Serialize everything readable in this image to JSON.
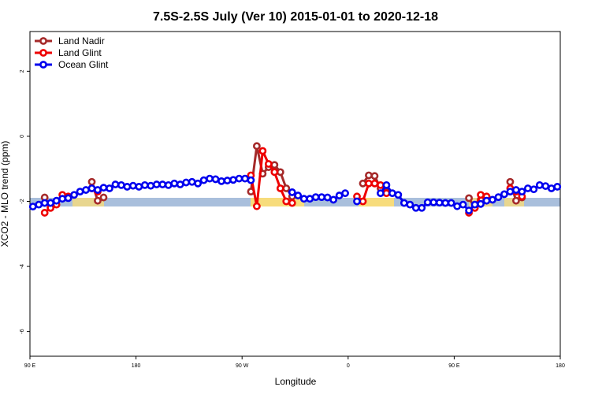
{
  "chart_data": {
    "type": "line",
    "title": "7.5S-2.5S July (Ver 10)   2015-01-01 to 2020-12-18",
    "x_label": "Longitude",
    "y_label": "XCO2 - MLO trend (ppm)",
    "x": [
      92.5,
      97.5,
      102.5,
      107.5,
      112.5,
      117.5,
      122.5,
      127.5,
      132.5,
      137.5,
      142.5,
      147.5,
      152.5,
      157.5,
      162.5,
      167.5,
      172.5,
      177.5,
      182.5,
      187.5,
      192.5,
      197.5,
      202.5,
      207.5,
      212.5,
      217.5,
      222.5,
      227.5,
      232.5,
      237.5,
      242.5,
      247.5,
      252.5,
      257.5,
      262.5,
      267.5,
      272.5,
      277.5,
      282.5,
      287.5,
      292.5,
      297.5,
      302.5,
      307.5,
      312.5,
      317.5,
      322.5,
      327.5,
      332.5,
      337.5,
      342.5,
      347.5,
      352.5,
      357.5,
      362.5,
      367.5,
      372.5,
      377.5,
      382.5,
      387.5,
      392.5,
      397.5,
      402.5,
      407.5,
      412.5,
      417.5,
      422.5,
      427.5,
      432.5,
      437.5,
      442.5,
      447.5,
      452.5,
      457.5,
      462.5,
      467.5,
      472.5,
      477.5,
      482.5,
      487.5,
      492.5,
      497.5,
      502.5,
      507.5,
      512.5,
      517.5,
      522.5,
      527.5,
      532.5,
      537.5
    ],
    "series": [
      {
        "name": "Land Nadir",
        "color": "#a52a2a",
        "values": [
          null,
          null,
          -1.88,
          -2.2,
          null,
          null,
          null,
          null,
          null,
          null,
          -1.4,
          -1.98,
          -1.88,
          null,
          null,
          null,
          null,
          null,
          null,
          null,
          null,
          null,
          null,
          null,
          null,
          null,
          null,
          null,
          null,
          null,
          null,
          null,
          null,
          null,
          null,
          null,
          null,
          -1.7,
          -0.3,
          -1.15,
          -0.95,
          -0.88,
          -1.1,
          -1.6,
          -1.85,
          null,
          null,
          null,
          null,
          null,
          null,
          null,
          null,
          null,
          null,
          null,
          -1.45,
          -1.2,
          -1.22,
          -1.6,
          -1.7,
          null,
          null,
          null,
          null,
          null,
          null,
          null,
          null,
          null,
          null,
          null,
          null,
          null,
          -1.9,
          -2.2,
          -1.95,
          null,
          null,
          null,
          null,
          -1.4,
          -1.98,
          -1.88,
          null,
          null,
          null,
          null,
          null,
          null
        ]
      },
      {
        "name": "Land Glint",
        "color": "#ee0000",
        "values": [
          null,
          null,
          -2.35,
          -2.2,
          -2.1,
          -1.8,
          -1.85,
          null,
          null,
          null,
          -1.6,
          -1.7,
          null,
          null,
          null,
          null,
          null,
          null,
          null,
          null,
          null,
          null,
          null,
          null,
          null,
          null,
          null,
          null,
          null,
          null,
          null,
          null,
          null,
          null,
          null,
          null,
          null,
          -1.2,
          -2.15,
          -0.45,
          -0.85,
          -1.1,
          -1.6,
          -2.0,
          -2.05,
          null,
          null,
          null,
          null,
          null,
          null,
          null,
          null,
          null,
          null,
          -1.85,
          -2.0,
          -1.45,
          -1.45,
          -1.5,
          -1.75,
          null,
          null,
          null,
          null,
          null,
          null,
          null,
          null,
          null,
          null,
          null,
          null,
          null,
          -2.35,
          -2.2,
          -1.8,
          -1.85,
          null,
          null,
          null,
          -1.6,
          -1.7,
          -1.85,
          null,
          null,
          null,
          null,
          null,
          null
        ]
      },
      {
        "name": "Ocean Glint",
        "color": "#0000ee",
        "values": [
          -2.16,
          -2.1,
          -2.05,
          -2.05,
          -1.98,
          -1.92,
          -1.9,
          -1.8,
          -1.7,
          -1.65,
          -1.6,
          -1.65,
          -1.58,
          -1.6,
          -1.48,
          -1.5,
          -1.55,
          -1.52,
          -1.55,
          -1.5,
          -1.52,
          -1.48,
          -1.48,
          -1.5,
          -1.45,
          -1.48,
          -1.42,
          -1.4,
          -1.45,
          -1.35,
          -1.3,
          -1.32,
          -1.38,
          -1.36,
          -1.34,
          -1.3,
          -1.3,
          -1.35,
          null,
          null,
          null,
          null,
          null,
          null,
          -1.72,
          -1.82,
          -1.92,
          -1.92,
          -1.87,
          -1.87,
          -1.88,
          -1.95,
          -1.82,
          -1.75,
          null,
          -2.0,
          null,
          null,
          null,
          -1.75,
          -1.5,
          -1.75,
          -1.8,
          -2.05,
          -2.1,
          -2.2,
          -2.2,
          -2.03,
          -2.03,
          -2.04,
          -2.05,
          -2.05,
          -2.15,
          -2.1,
          -2.28,
          -2.1,
          -2.08,
          -1.98,
          -1.95,
          -1.87,
          -1.78,
          -1.7,
          -1.65,
          -1.7,
          -1.6,
          -1.63,
          -1.5,
          -1.53,
          -1.6,
          -1.55
        ]
      }
    ],
    "xlim": [
      90,
      540
    ],
    "ylim": [
      -6.76,
      3.22
    ],
    "xticks": [
      {
        "value": 90,
        "label": "90 E"
      },
      {
        "value": 180,
        "label": "180"
      },
      {
        "value": 270,
        "label": "90 W"
      },
      {
        "value": 360,
        "label": "0"
      },
      {
        "value": 450,
        "label": "90 E"
      },
      {
        "value": 540,
        "label": "180"
      }
    ],
    "yticks": [
      2,
      0,
      -2,
      -4,
      -6
    ],
    "legend": "top-left"
  }
}
